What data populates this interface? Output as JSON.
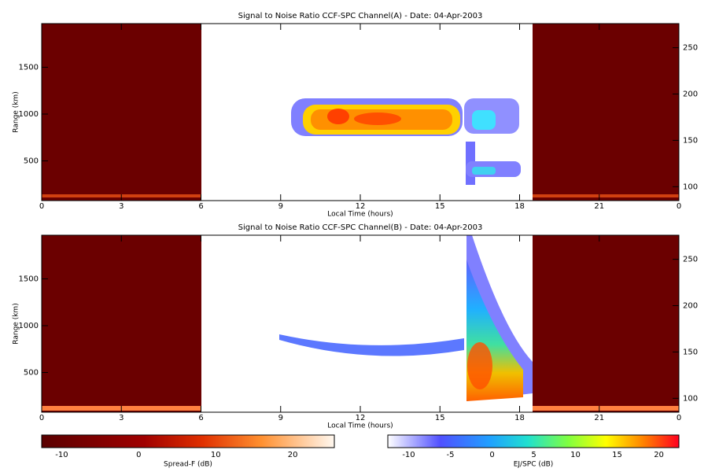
{
  "chart_data": [
    {
      "type": "heatmap",
      "title": "Signal to Noise Ratio CCF-SPC Channel(A) - Date: 04-Apr-2003",
      "xlabel": "Local Time (hours)",
      "ylabel": "Range (km)",
      "xlim": [
        0,
        24
      ],
      "xticks": [
        0,
        3,
        6,
        9,
        12,
        15,
        18,
        21,
        {
          "value": 24,
          "label": "0"
        }
      ],
      "ylim": [
        76,
        1966
      ],
      "yticks": [
        500,
        1000,
        1500
      ],
      "y2lim": [
        85,
        276
      ],
      "y2ticks": [
        100,
        150,
        200,
        250
      ]
    },
    {
      "type": "heatmap",
      "title": "Signal to Noise Ratio CCF-SPC Channel(B) - Date: 04-Apr-2003",
      "xlabel": "Local Time (hours)",
      "ylabel": "Range (km)",
      "xlim": [
        0,
        24
      ],
      "xticks": [
        0,
        3,
        6,
        9,
        12,
        15,
        18,
        21,
        {
          "value": 24,
          "label": "0"
        }
      ],
      "ylim": [
        76,
        1966
      ],
      "yticks": [
        500,
        1000,
        1500
      ],
      "y2lim": [
        85,
        276
      ],
      "y2ticks": [
        100,
        150,
        200,
        250
      ]
    }
  ],
  "colorbars": [
    {
      "label": "Spread-F (dB)",
      "xlim": [
        -12.6,
        25.4
      ],
      "ticks": [
        -10,
        0,
        10,
        20
      ]
    },
    {
      "label": "EJ/SPC (dB)",
      "xlim": [
        -12.5,
        22.4
      ],
      "ticks": [
        -10,
        -5,
        0,
        5,
        10,
        15,
        20
      ]
    }
  ]
}
